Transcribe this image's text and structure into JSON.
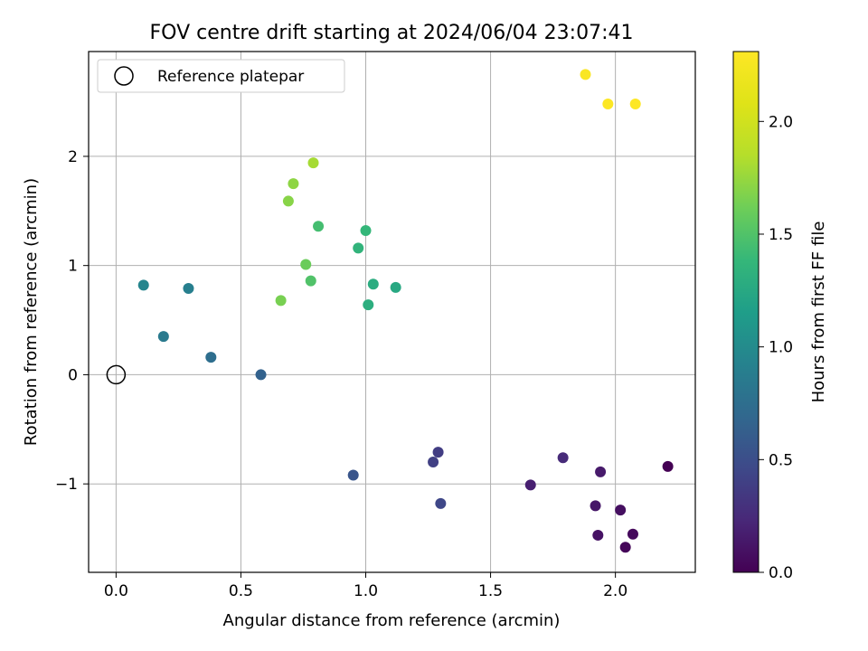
{
  "chart_data": {
    "type": "scatter",
    "title": "FOV centre drift starting at 2024/06/04 23:07:41",
    "xlabel": "Angular distance from reference (arcmin)",
    "ylabel": "Rotation from reference (arcmin)",
    "xlim": [
      -0.11,
      2.32
    ],
    "ylim": [
      -1.81,
      2.96
    ],
    "xticks": [
      0.0,
      0.5,
      1.0,
      1.5,
      2.0
    ],
    "xtick_labels": [
      "0.0",
      "0.5",
      "1.0",
      "1.5",
      "2.0"
    ],
    "yticks": [
      -1,
      0,
      1,
      2
    ],
    "ytick_labels": [
      "−1",
      "0",
      "1",
      "2"
    ],
    "grid": true,
    "legend": {
      "placement": "top-left",
      "entries": [
        {
          "label": "Reference platepar",
          "marker": "open-circle",
          "color": "#000000"
        }
      ]
    },
    "reference_point": {
      "x": 0.0,
      "y": 0.0
    },
    "colorbar": {
      "label": "Hours from first FF file",
      "colormap": "viridis",
      "range": [
        0.0,
        2.31
      ],
      "ticks": [
        0.0,
        0.5,
        1.0,
        1.5,
        2.0
      ],
      "tick_labels": [
        "0.0",
        "0.5",
        "1.0",
        "1.5",
        "2.0"
      ]
    },
    "points": [
      {
        "x": 2.21,
        "y": -0.84,
        "c": 0.0
      },
      {
        "x": 2.04,
        "y": -1.58,
        "c": 0.03
      },
      {
        "x": 2.07,
        "y": -1.46,
        "c": 0.05
      },
      {
        "x": 2.02,
        "y": -1.24,
        "c": 0.08
      },
      {
        "x": 1.93,
        "y": -1.47,
        "c": 0.1
      },
      {
        "x": 1.92,
        "y": -1.2,
        "c": 0.13
      },
      {
        "x": 1.94,
        "y": -0.89,
        "c": 0.15
      },
      {
        "x": 1.66,
        "y": -1.01,
        "c": 0.18
      },
      {
        "x": 1.79,
        "y": -0.76,
        "c": 0.25
      },
      {
        "x": 1.29,
        "y": -0.71,
        "c": 0.38
      },
      {
        "x": 1.27,
        "y": -0.8,
        "c": 0.4
      },
      {
        "x": 1.3,
        "y": -1.18,
        "c": 0.45
      },
      {
        "x": 0.95,
        "y": -0.92,
        "c": 0.55
      },
      {
        "x": 0.58,
        "y": 0.0,
        "c": 0.65
      },
      {
        "x": 0.38,
        "y": 0.16,
        "c": 0.75
      },
      {
        "x": 0.19,
        "y": 0.35,
        "c": 0.85
      },
      {
        "x": 0.29,
        "y": 0.79,
        "c": 0.9
      },
      {
        "x": 0.11,
        "y": 0.82,
        "c": 0.95
      },
      {
        "x": 1.12,
        "y": 0.8,
        "c": 1.25
      },
      {
        "x": 1.03,
        "y": 0.83,
        "c": 1.28
      },
      {
        "x": 1.01,
        "y": 0.64,
        "c": 1.3
      },
      {
        "x": 0.97,
        "y": 1.16,
        "c": 1.35
      },
      {
        "x": 1.0,
        "y": 1.32,
        "c": 1.38
      },
      {
        "x": 0.81,
        "y": 1.36,
        "c": 1.45
      },
      {
        "x": 0.78,
        "y": 0.86,
        "c": 1.5
      },
      {
        "x": 0.76,
        "y": 1.01,
        "c": 1.6
      },
      {
        "x": 0.66,
        "y": 0.68,
        "c": 1.65
      },
      {
        "x": 0.69,
        "y": 1.59,
        "c": 1.7
      },
      {
        "x": 0.71,
        "y": 1.75,
        "c": 1.72
      },
      {
        "x": 0.79,
        "y": 1.94,
        "c": 1.8
      },
      {
        "x": 1.88,
        "y": 2.75,
        "c": 2.28
      },
      {
        "x": 1.97,
        "y": 2.48,
        "c": 2.3
      },
      {
        "x": 2.08,
        "y": 2.48,
        "c": 2.31
      }
    ]
  }
}
